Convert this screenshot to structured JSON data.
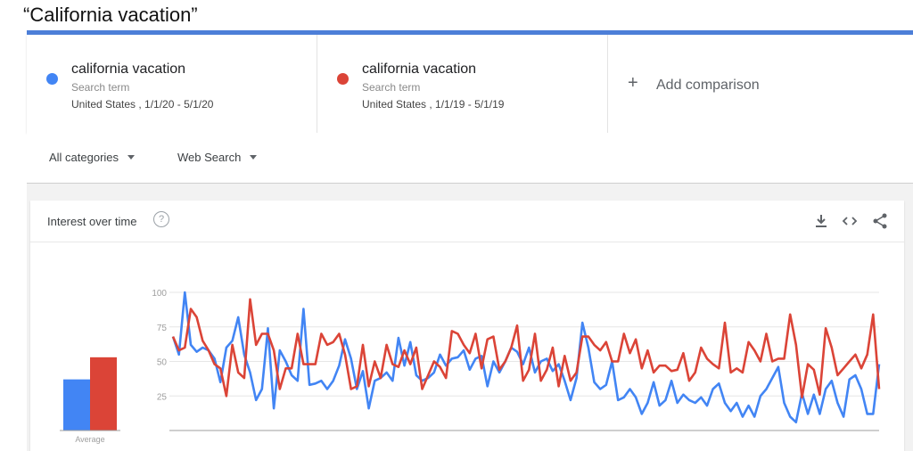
{
  "page": {
    "title": "“California vacation”"
  },
  "terms": [
    {
      "name": "california vacation",
      "type": "Search term",
      "meta": "United States , 1/1/20 - 5/1/20",
      "color": "#4285f4"
    },
    {
      "name": "california vacation",
      "type": "Search term",
      "meta": "United States , 1/1/19 - 5/1/19",
      "color": "#db4437"
    }
  ],
  "add_comparison": {
    "label": "Add comparison",
    "icon": "plus-icon"
  },
  "filters": {
    "category": "All categories",
    "search_type": "Web Search"
  },
  "interest": {
    "title": "Interest over time",
    "help_glyph": "?",
    "icons": [
      "download-icon",
      "embed-icon",
      "share-icon"
    ]
  },
  "chart_data": {
    "type": "line",
    "yticks": [
      "100",
      "75",
      "50",
      "25"
    ],
    "ylim": [
      0,
      100
    ],
    "grid": true,
    "average": {
      "label": "Average",
      "values": [
        37,
        53
      ]
    },
    "series": [
      {
        "color": "#4285f4",
        "values": [
          68,
          55,
          100,
          62,
          57,
          60,
          58,
          52,
          35,
          60,
          65,
          82,
          55,
          42,
          22,
          30,
          74,
          16,
          58,
          50,
          40,
          36,
          88,
          33,
          34,
          36,
          30,
          36,
          47,
          66,
          52,
          30,
          43,
          16,
          36,
          38,
          42,
          36,
          67,
          47,
          64,
          40,
          36,
          38,
          42,
          55,
          47,
          52,
          53,
          58,
          44,
          52,
          54,
          32,
          50,
          42,
          50,
          60,
          57,
          48,
          60,
          42,
          50,
          52,
          43,
          48,
          36,
          22,
          38,
          78,
          60,
          35,
          30,
          33,
          50,
          22,
          24,
          30,
          24,
          12,
          20,
          35,
          18,
          22,
          36,
          20,
          26,
          22,
          20,
          24,
          18,
          30,
          34,
          20,
          14,
          20,
          10,
          18,
          10,
          25,
          30,
          38,
          46,
          20,
          10,
          6,
          27,
          12,
          26,
          12,
          30,
          36,
          20,
          10,
          37,
          40,
          30,
          12,
          12,
          48
        ]
      },
      {
        "color": "#db4437",
        "values": [
          68,
          58,
          60,
          88,
          82,
          65,
          58,
          48,
          45,
          25,
          62,
          42,
          38,
          95,
          62,
          70,
          70,
          58,
          30,
          45,
          45,
          70,
          48,
          48,
          48,
          70,
          62,
          64,
          70,
          55,
          30,
          32,
          62,
          32,
          50,
          38,
          62,
          48,
          46,
          58,
          48,
          60,
          30,
          40,
          50,
          46,
          38,
          72,
          70,
          62,
          56,
          70,
          45,
          66,
          68,
          44,
          50,
          60,
          76,
          36,
          44,
          70,
          36,
          44,
          60,
          32,
          54,
          36,
          42,
          68,
          68,
          62,
          58,
          64,
          50,
          50,
          70,
          56,
          66,
          45,
          58,
          42,
          47,
          47,
          43,
          44,
          56,
          36,
          42,
          60,
          52,
          48,
          45,
          78,
          42,
          45,
          42,
          64,
          58,
          50,
          70,
          50,
          52,
          52,
          84,
          62,
          24,
          48,
          44,
          26,
          74,
          60,
          40,
          45,
          50,
          55,
          45,
          55,
          84,
          30
        ]
      }
    ]
  }
}
